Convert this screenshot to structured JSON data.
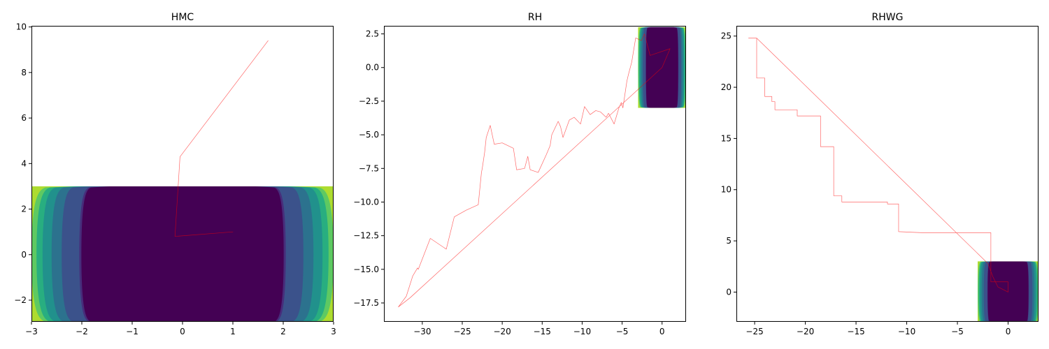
{
  "chart_data": [
    {
      "type": "line",
      "title": "HMC",
      "xlabel": "",
      "ylabel": "",
      "xlim": [
        -3,
        3
      ],
      "ylim": [
        -2.95,
        10.05
      ],
      "xticks": [
        -3,
        -2,
        -1,
        0,
        1,
        2,
        3
      ],
      "yticks": [
        -2,
        0,
        2,
        4,
        6,
        8,
        10
      ],
      "grid": false,
      "background_contour": {
        "type": "filled_contour",
        "x_range": [
          -3,
          3
        ],
        "y_range": [
          -3,
          3
        ],
        "levels": [
          2.05,
          2.4,
          2.6,
          2.78,
          2.9,
          3.0
        ],
        "colors": [
          "#440154",
          "#472d7b",
          "#3b528b",
          "#2c728e",
          "#21918c",
          "#28ae80",
          "#5ec962",
          "#addc30"
        ]
      },
      "series": [
        {
          "color": "#ff0000",
          "x": [
            1.0,
            -0.15,
            -0.05,
            1.7
          ],
          "y": [
            1.0,
            0.8,
            4.3,
            9.4
          ]
        }
      ]
    },
    {
      "type": "line",
      "title": "RH",
      "xlabel": "",
      "ylabel": "",
      "xlim": [
        -34.8,
        3.0
      ],
      "ylim": [
        -18.9,
        3.1
      ],
      "xticks": [
        -30,
        -25,
        -20,
        -15,
        -10,
        -5,
        0
      ],
      "yticks": [
        2.5,
        0.0,
        -2.5,
        -5.0,
        -7.5,
        -10.0,
        -12.5,
        -15.0,
        -17.5
      ],
      "grid": false,
      "background_contour": {
        "type": "filled_contour",
        "x_range": [
          -3,
          3
        ],
        "y_range": [
          -3,
          3
        ],
        "levels": [
          2.05,
          2.4,
          2.6,
          2.78,
          2.9,
          3.0
        ],
        "colors": [
          "#440154",
          "#472d7b",
          "#3b528b",
          "#2c728e",
          "#21918c",
          "#28ae80",
          "#5ec962",
          "#addc30"
        ]
      },
      "series": [
        {
          "color": "#ff0000",
          "x": [
            1.0,
            -1.5,
            -2.2,
            -2.6,
            -3.3,
            -3.8,
            -4.2,
            -4.4,
            -4.9,
            -5.1,
            -5.4,
            -5.7,
            -6.0,
            -6.7,
            -7.0,
            -7.7,
            -8.3,
            -9.0,
            -9.7,
            -10.2,
            -11.0,
            -11.6,
            -12.4,
            -12.7,
            -13.0,
            -13.4,
            -13.8,
            -14.0,
            -14.5,
            -15.5,
            -16.5,
            -16.8,
            -17.2,
            -18.2,
            -18.6,
            -20.0,
            -21.0,
            -21.5,
            -22.0,
            -22.2,
            -22.5,
            -22.6,
            -23.0,
            -24.5,
            -26.0,
            -27.0,
            -29.0,
            -30.5,
            -30.6,
            -31.2,
            -32.0,
            -33.0,
            -31.5,
            0.0,
            1.0
          ],
          "y": [
            1.4,
            0.9,
            2.5,
            2.0,
            2.2,
            0.4,
            -0.5,
            -1.0,
            -3.0,
            -2.6,
            -3.0,
            -3.6,
            -4.2,
            -3.4,
            -3.7,
            -3.3,
            -3.2,
            -3.5,
            -2.9,
            -4.2,
            -3.7,
            -3.9,
            -5.2,
            -4.4,
            -4.0,
            -4.5,
            -5.0,
            -5.8,
            -6.5,
            -7.8,
            -7.6,
            -6.6,
            -7.5,
            -7.6,
            -6.0,
            -5.6,
            -5.7,
            -4.3,
            -5.2,
            -6.3,
            -7.5,
            -7.8,
            -10.2,
            -10.6,
            -11.1,
            -13.5,
            -12.7,
            -15.0,
            -14.9,
            -15.5,
            -17.0,
            -17.8,
            -17.1,
            0.0,
            1.4
          ]
        }
      ]
    },
    {
      "type": "line",
      "title": "RHWG",
      "xlabel": "",
      "ylabel": "",
      "xlim": [
        -26.8,
        3.0
      ],
      "ylim": [
        -2.9,
        26.0
      ],
      "xticks": [
        -25,
        -20,
        -15,
        -10,
        -5,
        0
      ],
      "yticks": [
        0,
        5,
        10,
        15,
        20,
        25
      ],
      "grid": false,
      "background_contour": {
        "type": "filled_contour",
        "x_range": [
          -3,
          3
        ],
        "y_range": [
          -3,
          3
        ],
        "levels": [
          2.05,
          2.4,
          2.6,
          2.78,
          2.9,
          3.0
        ],
        "colors": [
          "#440154",
          "#472d7b",
          "#3b528b",
          "#2c728e",
          "#21918c",
          "#28ae80",
          "#5ec962",
          "#addc30"
        ]
      },
      "series": [
        {
          "color": "#ff0000",
          "x": [
            0.0,
            0.0,
            -1.7,
            -1.7,
            -1.7,
            -1.7,
            -8.5,
            -10.8,
            -10.8,
            -11.9,
            -11.9,
            -16.4,
            -16.4,
            -17.2,
            -17.2,
            -18.5,
            -18.5,
            -18.5,
            -20.8,
            -20.8,
            -23.0,
            -23.0,
            -23.3,
            -23.3,
            -24.0,
            -24.0,
            -24.8,
            -24.8,
            -25.6,
            -24.8,
            -2.0,
            -1.5,
            -1.0,
            0.0
          ],
          "y": [
            0.0,
            1.0,
            1.0,
            3.0,
            5.2,
            5.8,
            5.8,
            5.9,
            8.6,
            8.6,
            8.8,
            8.8,
            9.4,
            9.4,
            14.2,
            14.2,
            17.2,
            17.2,
            17.2,
            17.8,
            17.8,
            18.6,
            18.6,
            19.1,
            19.1,
            20.9,
            20.9,
            24.8,
            24.8,
            24.8,
            2.8,
            1.5,
            0.5,
            0.0
          ]
        }
      ]
    }
  ]
}
